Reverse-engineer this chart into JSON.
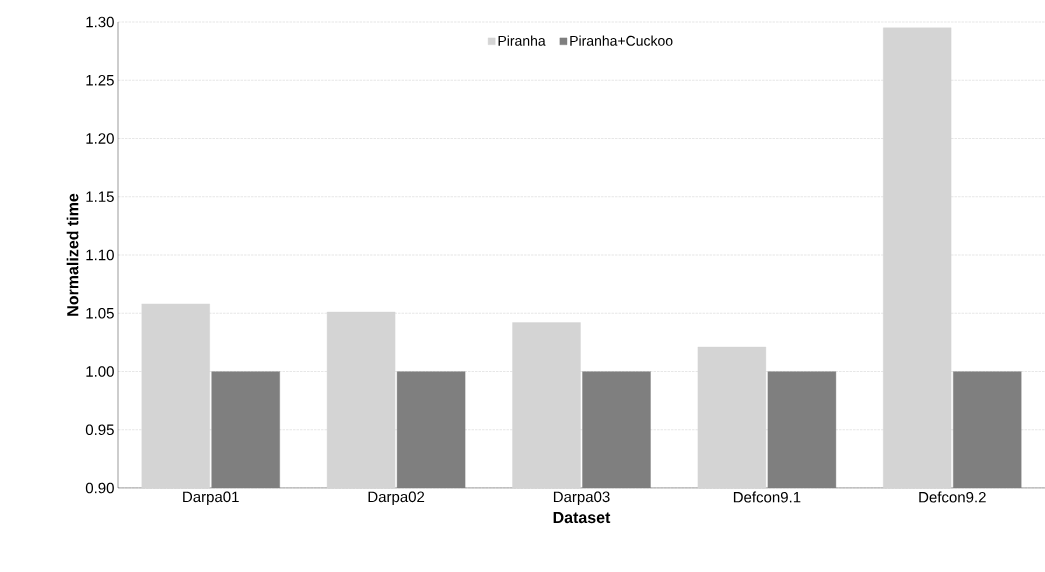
{
  "chart_data": {
    "type": "bar",
    "xlabel": "Dataset",
    "ylabel": "Normalized time",
    "categories": [
      "Darpa01",
      "Darpa02",
      "Darpa03",
      "Defcon9.1",
      "Defcon9.2"
    ],
    "series": [
      {
        "name": "Piranha",
        "color": "#d4d4d4",
        "values": [
          1.058,
          1.051,
          1.042,
          1.021,
          1.295
        ]
      },
      {
        "name": "Piranha+Cuckoo",
        "color": "#7f7f7f",
        "values": [
          1.0,
          1.0,
          1.0,
          1.0,
          1.0
        ]
      }
    ],
    "ylim": [
      0.9,
      1.3
    ],
    "yticks": [
      {
        "value": 0.9,
        "label": "0.90"
      },
      {
        "value": 0.95,
        "label": "0.95"
      },
      {
        "value": 1.0,
        "label": "1.00"
      },
      {
        "value": 1.05,
        "label": "1.05"
      },
      {
        "value": 1.1,
        "label": "1.10"
      },
      {
        "value": 1.15,
        "label": "1.15"
      },
      {
        "value": 1.2,
        "label": "1.20"
      },
      {
        "value": 1.25,
        "label": "1.25"
      },
      {
        "value": 1.3,
        "label": "1.30"
      }
    ],
    "grid": "y",
    "legend": "top"
  }
}
